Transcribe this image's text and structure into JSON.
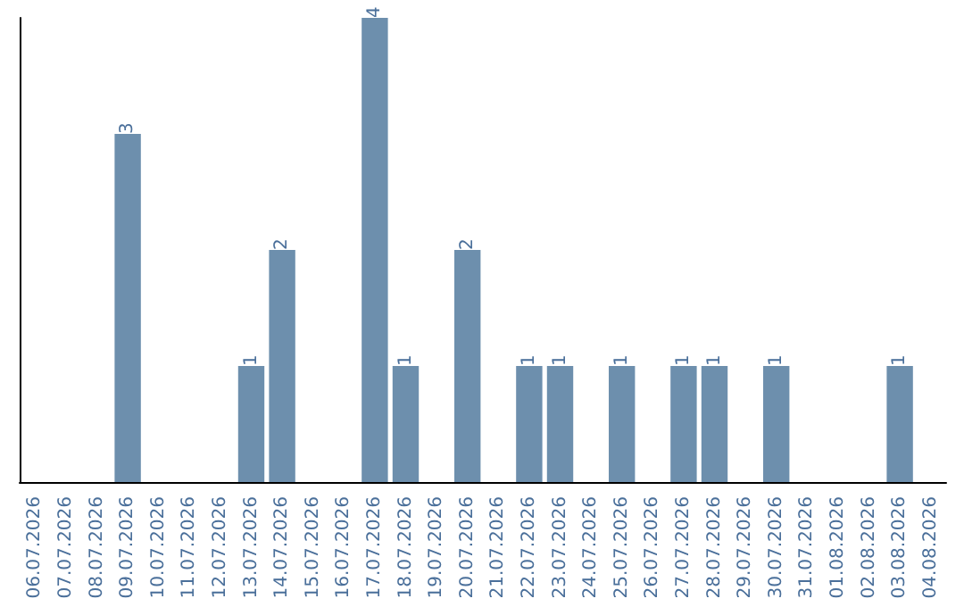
{
  "chart_data": {
    "type": "bar",
    "categories": [
      "06.07.2026",
      "07.07.2026",
      "08.07.2026",
      "09.07.2026",
      "10.07.2026",
      "11.07.2026",
      "12.07.2026",
      "13.07.2026",
      "14.07.2026",
      "15.07.2026",
      "16.07.2026",
      "17.07.2026",
      "18.07.2026",
      "19.07.2026",
      "20.07.2026",
      "21.07.2026",
      "22.07.2026",
      "23.07.2026",
      "24.07.2026",
      "25.07.2026",
      "26.07.2026",
      "27.07.2026",
      "28.07.2026",
      "29.07.2026",
      "30.07.2026",
      "31.07.2026",
      "01.08.2026",
      "02.08.2026",
      "03.08.2026",
      "04.08.2026"
    ],
    "values": [
      0,
      0,
      0,
      3,
      0,
      0,
      0,
      1,
      2,
      0,
      0,
      4,
      1,
      0,
      2,
      0,
      1,
      1,
      0,
      1,
      0,
      1,
      1,
      0,
      1,
      0,
      0,
      0,
      1,
      0
    ],
    "value_labels": [
      null,
      null,
      null,
      "3",
      null,
      null,
      null,
      "1",
      "2",
      null,
      null,
      "4",
      "1",
      null,
      "2",
      null,
      "1",
      "1",
      null,
      "1",
      null,
      "1",
      "1",
      null,
      "1",
      null,
      null,
      null,
      "1",
      null
    ],
    "color": "#6d8fad",
    "tick_labels": "x",
    "grid": false
  }
}
